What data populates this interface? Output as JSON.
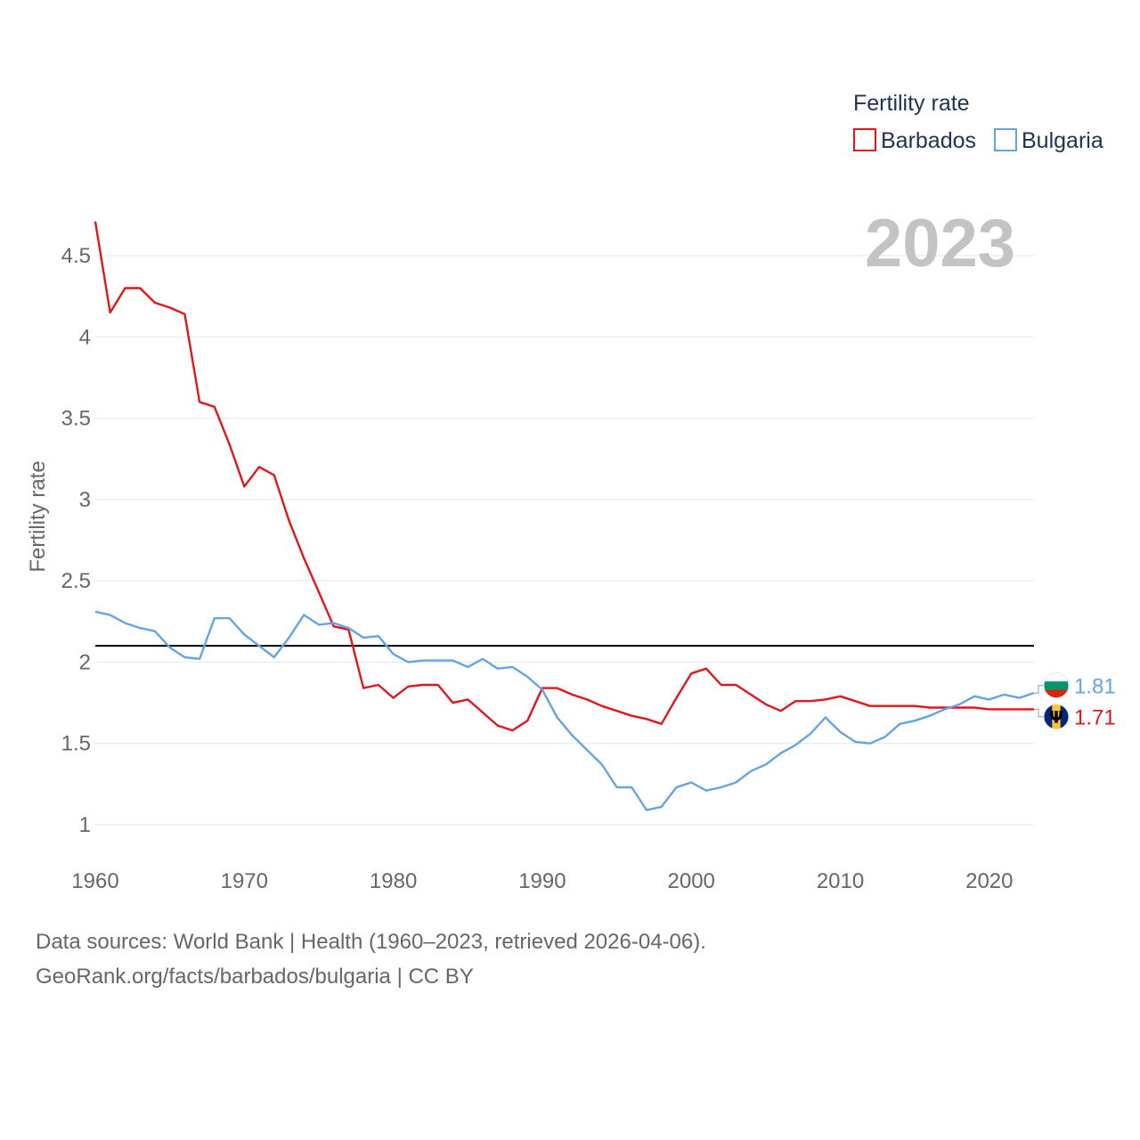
{
  "chart_data": {
    "type": "line",
    "year_label": "2023",
    "legend_title": "Fertility rate",
    "ylabel": "Fertility rate",
    "xlabel": "",
    "ylim": [
      0.85,
      4.75
    ],
    "xlim": [
      1960,
      2023
    ],
    "y_ticks": [
      1,
      1.5,
      2,
      2.5,
      3,
      3.5,
      4,
      4.5
    ],
    "y_tick_labels": [
      "1",
      "1.5",
      "2",
      "2.5",
      "3",
      "3.5",
      "4",
      "4.5"
    ],
    "x_ticks": [
      1960,
      1970,
      1980,
      1990,
      2000,
      2010,
      2020
    ],
    "x_tick_labels": [
      "1960",
      "1970",
      "1980",
      "1990",
      "2000",
      "2010",
      "2020"
    ],
    "reference_line": 2.1,
    "legend_position": "top-right",
    "x": [
      1960,
      1961,
      1962,
      1963,
      1964,
      1965,
      1966,
      1967,
      1968,
      1969,
      1970,
      1971,
      1972,
      1973,
      1974,
      1975,
      1976,
      1977,
      1978,
      1979,
      1980,
      1981,
      1982,
      1983,
      1984,
      1985,
      1986,
      1987,
      1988,
      1989,
      1990,
      1991,
      1992,
      1993,
      1994,
      1995,
      1996,
      1997,
      1998,
      1999,
      2000,
      2001,
      2002,
      2003,
      2004,
      2005,
      2006,
      2007,
      2008,
      2009,
      2010,
      2011,
      2012,
      2013,
      2014,
      2015,
      2016,
      2017,
      2018,
      2019,
      2020,
      2021,
      2022,
      2023
    ],
    "series": [
      {
        "name": "Barbados",
        "color": "#e0161b",
        "end_label": "1.71",
        "values": [
          4.71,
          4.15,
          4.3,
          4.3,
          4.21,
          4.18,
          4.14,
          3.6,
          3.57,
          3.34,
          3.08,
          3.2,
          3.15,
          2.87,
          2.64,
          2.43,
          2.22,
          2.2,
          1.84,
          1.86,
          1.78,
          1.85,
          1.86,
          1.86,
          1.75,
          1.77,
          1.69,
          1.61,
          1.58,
          1.64,
          1.84,
          1.84,
          1.8,
          1.77,
          1.73,
          1.7,
          1.67,
          1.65,
          1.62,
          1.78,
          1.93,
          1.96,
          1.86,
          1.86,
          1.8,
          1.74,
          1.7,
          1.76,
          1.76,
          1.77,
          1.79,
          1.76,
          1.73,
          1.73,
          1.73,
          1.73,
          1.72,
          1.72,
          1.72,
          1.72,
          1.71,
          1.71,
          1.71,
          1.71
        ]
      },
      {
        "name": "Bulgaria",
        "color": "#64a4e3",
        "end_label": "1.81",
        "values": [
          2.31,
          2.29,
          2.24,
          2.21,
          2.19,
          2.09,
          2.03,
          2.02,
          2.27,
          2.27,
          2.17,
          2.1,
          2.03,
          2.15,
          2.29,
          2.23,
          2.24,
          2.21,
          2.15,
          2.16,
          2.05,
          2.0,
          2.01,
          2.01,
          2.01,
          1.97,
          2.02,
          1.96,
          1.97,
          1.91,
          1.83,
          1.66,
          1.55,
          1.46,
          1.37,
          1.23,
          1.23,
          1.09,
          1.11,
          1.23,
          1.26,
          1.21,
          1.23,
          1.26,
          1.33,
          1.37,
          1.44,
          1.49,
          1.56,
          1.66,
          1.57,
          1.51,
          1.5,
          1.54,
          1.62,
          1.64,
          1.67,
          1.71,
          1.74,
          1.79,
          1.77,
          1.8,
          1.78,
          1.81
        ]
      }
    ],
    "flags": {
      "Barbados": {
        "colors": [
          "#00267f",
          "#ffc726",
          "#00267f"
        ],
        "glyph": "Ψ"
      },
      "Bulgaria": {
        "colors": [
          "#ffffff",
          "#00966e",
          "#d62612"
        ]
      }
    }
  },
  "footer": {
    "line1": "Data sources: World Bank | Health (1960–2023, retrieved 2026-04-06).",
    "line2": "GeoRank.org/facts/barbados/bulgaria | CC BY"
  }
}
